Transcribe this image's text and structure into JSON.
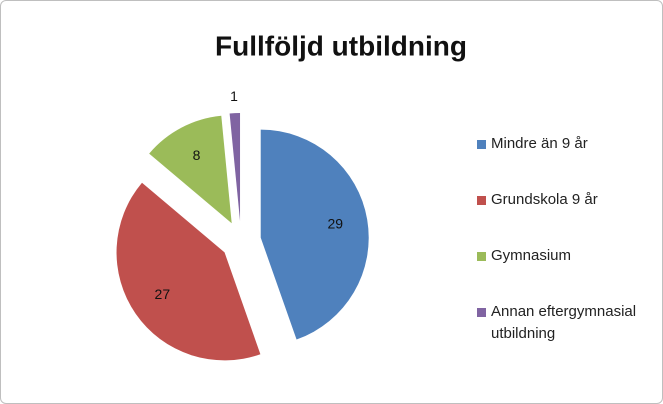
{
  "chart_data": {
    "type": "pie",
    "title": "Fullföljd utbildning",
    "categories": [
      "Mindre än 9 år",
      "Grundskola 9 år",
      "Gymnasium",
      "Annan eftergymnasial utbildning"
    ],
    "values": [
      29,
      27,
      8,
      1
    ],
    "colors": [
      "#4f81bd",
      "#c0504d",
      "#9bbb59",
      "#8064a2"
    ],
    "legend": "right"
  }
}
